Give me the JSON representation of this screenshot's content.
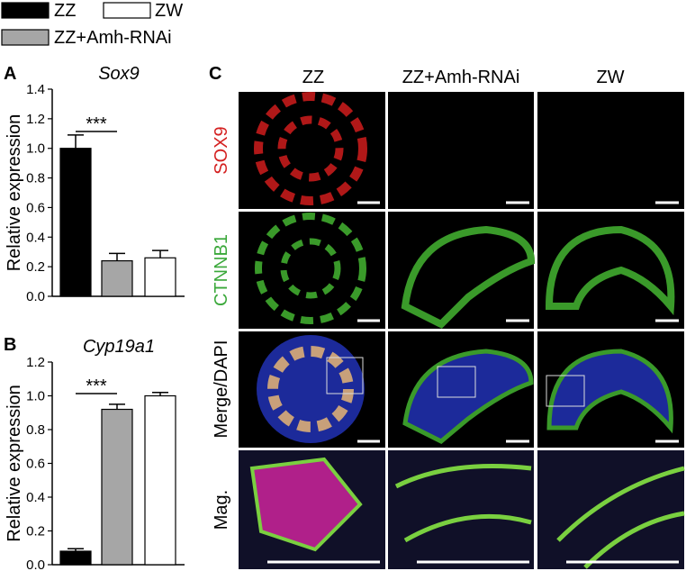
{
  "legend": [
    {
      "name": "ZZ",
      "color": "#000000"
    },
    {
      "name": "ZW",
      "color": "#ffffff"
    },
    {
      "name": "ZZ+Amh-RNAi",
      "color": "#a6a6a6"
    }
  ],
  "chart_data": [
    {
      "type": "bar",
      "panel_label": "A",
      "title": "Sox9",
      "y_label": "Relative expression",
      "categories": [
        null,
        null,
        null
      ],
      "values": [
        1.0,
        0.24,
        0.26
      ],
      "errors": [
        0.09,
        0.05,
        0.05
      ],
      "colors": [
        "#000000",
        "#a6a6a6",
        "#ffffff"
      ],
      "ylim": [
        0,
        1.4
      ],
      "yticks": [
        {
          "value": 0,
          "label": "0.0"
        },
        0.2,
        0.4,
        0.6,
        0.8,
        {
          "value": 1,
          "label": "1.0"
        },
        1.2,
        1.4
      ],
      "significance": "***"
    },
    {
      "type": "bar",
      "panel_label": "B",
      "title": "Cyp19a1",
      "y_label": "Relative expression",
      "categories": [
        null,
        null,
        null
      ],
      "values": [
        0.08,
        0.92,
        1.0
      ],
      "errors": [
        0.015,
        0.03,
        0.02
      ],
      "colors": [
        "#000000",
        "#a6a6a6",
        "#ffffff"
      ],
      "ylim": [
        0,
        1.2
      ],
      "yticks": [
        {
          "value": 0,
          "label": "0.0"
        },
        0.2,
        0.4,
        0.6,
        0.8,
        {
          "value": 1,
          "label": "1.0"
        },
        1.2
      ],
      "significance": "***"
    }
  ],
  "panel_c": {
    "panel_label": "C",
    "columns": [
      "ZZ",
      "ZZ+Amh-RNAi",
      "ZW"
    ],
    "rows": [
      {
        "label": "SOX9",
        "color": "#d42020"
      },
      {
        "label": "CTNNB1",
        "color": "#3aa83a"
      },
      {
        "label": "Merge/DAPI",
        "color": "#000000"
      },
      {
        "label": "Mag.",
        "color": "#000000"
      }
    ]
  }
}
